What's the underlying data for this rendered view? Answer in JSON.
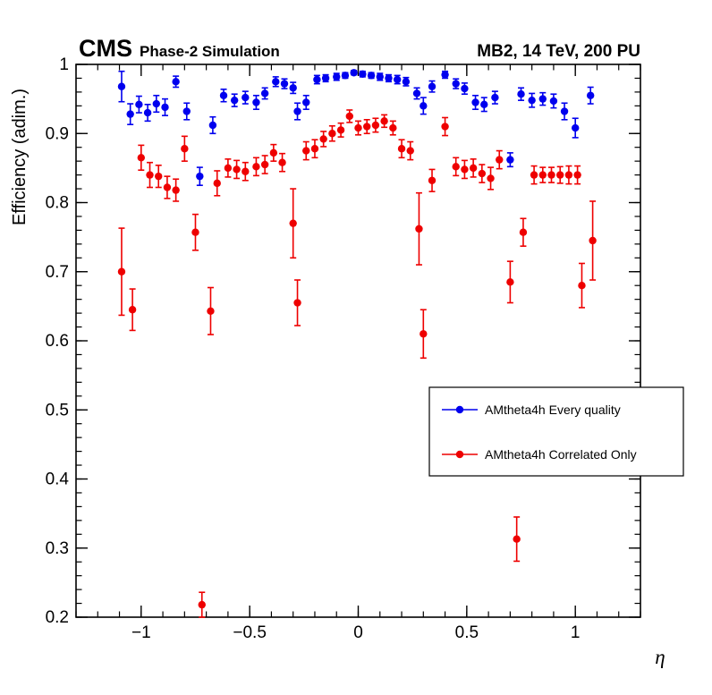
{
  "header": {
    "cms": "CMS",
    "subtitle": "Phase-2 Simulation",
    "right": "MB2, 14 TeV, 200 PU"
  },
  "axes": {
    "ylabel": "Efficiency (adim.)",
    "xlabel": "η"
  },
  "chart_data": {
    "type": "scatter",
    "title": "",
    "xlabel": "η",
    "ylabel": "Efficiency (adim.)",
    "xlim": [
      -1.3,
      1.3
    ],
    "ylim": [
      0.2,
      1.0
    ],
    "grid": false,
    "legend_position": "middle-right",
    "xticks": {
      "major": [
        -1,
        -0.5,
        0,
        0.5,
        1
      ],
      "labels": [
        "−1",
        "−0.5",
        "0",
        "0.5",
        "1"
      ],
      "minor_step": 0.1
    },
    "yticks": {
      "major": [
        0.2,
        0.3,
        0.4,
        0.5,
        0.6,
        0.7,
        0.8,
        0.9,
        1.0
      ],
      "labels": [
        "0.2",
        "0.3",
        "0.4",
        "0.5",
        "0.6",
        "0.7",
        "0.8",
        "0.9",
        "1"
      ],
      "minor_step": 0.02
    },
    "series": [
      {
        "name": "AMtheta4h Every quality",
        "color": "#0000ee",
        "marker": "circle",
        "points": [
          [
            -1.09,
            0.968,
            0.022
          ],
          [
            -1.05,
            0.928,
            0.015
          ],
          [
            -1.01,
            0.942,
            0.012
          ],
          [
            -0.97,
            0.93,
            0.012
          ],
          [
            -0.93,
            0.943,
            0.012
          ],
          [
            -0.89,
            0.938,
            0.012
          ],
          [
            -0.84,
            0.975,
            0.008
          ],
          [
            -0.79,
            0.932,
            0.012
          ],
          [
            -0.73,
            0.838,
            0.013
          ],
          [
            -0.67,
            0.912,
            0.012
          ],
          [
            -0.62,
            0.955,
            0.009
          ],
          [
            -0.57,
            0.948,
            0.009
          ],
          [
            -0.52,
            0.952,
            0.009
          ],
          [
            -0.47,
            0.945,
            0.01
          ],
          [
            -0.43,
            0.958,
            0.008
          ],
          [
            -0.38,
            0.975,
            0.007
          ],
          [
            -0.34,
            0.972,
            0.007
          ],
          [
            -0.3,
            0.966,
            0.008
          ],
          [
            -0.28,
            0.932,
            0.012
          ],
          [
            -0.24,
            0.945,
            0.01
          ],
          [
            -0.19,
            0.978,
            0.006
          ],
          [
            -0.15,
            0.98,
            0.005
          ],
          [
            -0.1,
            0.982,
            0.005
          ],
          [
            -0.06,
            0.984,
            0.004
          ],
          [
            -0.02,
            0.988,
            0.003
          ],
          [
            0.02,
            0.986,
            0.004
          ],
          [
            0.06,
            0.984,
            0.004
          ],
          [
            0.1,
            0.982,
            0.005
          ],
          [
            0.14,
            0.98,
            0.005
          ],
          [
            0.18,
            0.978,
            0.006
          ],
          [
            0.22,
            0.975,
            0.006
          ],
          [
            0.27,
            0.958,
            0.008
          ],
          [
            0.3,
            0.94,
            0.012
          ],
          [
            0.34,
            0.968,
            0.008
          ],
          [
            0.4,
            0.985,
            0.005
          ],
          [
            0.45,
            0.972,
            0.007
          ],
          [
            0.49,
            0.965,
            0.008
          ],
          [
            0.54,
            0.945,
            0.01
          ],
          [
            0.58,
            0.942,
            0.01
          ],
          [
            0.63,
            0.952,
            0.009
          ],
          [
            0.7,
            0.862,
            0.01
          ],
          [
            0.75,
            0.957,
            0.009
          ],
          [
            0.8,
            0.948,
            0.01
          ],
          [
            0.85,
            0.95,
            0.009
          ],
          [
            0.9,
            0.947,
            0.01
          ],
          [
            0.95,
            0.932,
            0.012
          ],
          [
            1.0,
            0.908,
            0.014
          ],
          [
            1.07,
            0.955,
            0.012
          ]
        ]
      },
      {
        "name": "AMtheta4h Correlated Only",
        "color": "#ee0000",
        "marker": "circle",
        "points": [
          [
            -1.09,
            0.7,
            0.063
          ],
          [
            -1.04,
            0.645,
            0.03
          ],
          [
            -1.0,
            0.865,
            0.018
          ],
          [
            -0.96,
            0.84,
            0.018
          ],
          [
            -0.92,
            0.838,
            0.016
          ],
          [
            -0.88,
            0.822,
            0.016
          ],
          [
            -0.84,
            0.818,
            0.016
          ],
          [
            -0.8,
            0.878,
            0.018
          ],
          [
            -0.75,
            0.757,
            0.026
          ],
          [
            -0.72,
            0.218,
            0.018
          ],
          [
            -0.68,
            0.643,
            0.034
          ],
          [
            -0.65,
            0.828,
            0.018
          ],
          [
            -0.6,
            0.85,
            0.013
          ],
          [
            -0.56,
            0.848,
            0.013
          ],
          [
            -0.52,
            0.845,
            0.013
          ],
          [
            -0.47,
            0.852,
            0.013
          ],
          [
            -0.43,
            0.855,
            0.013
          ],
          [
            -0.39,
            0.872,
            0.012
          ],
          [
            -0.35,
            0.858,
            0.013
          ],
          [
            -0.3,
            0.77,
            0.05
          ],
          [
            -0.28,
            0.655,
            0.033
          ],
          [
            -0.24,
            0.875,
            0.013
          ],
          [
            -0.2,
            0.878,
            0.013
          ],
          [
            -0.16,
            0.892,
            0.011
          ],
          [
            -0.12,
            0.9,
            0.011
          ],
          [
            -0.08,
            0.905,
            0.01
          ],
          [
            -0.04,
            0.925,
            0.009
          ],
          [
            0.0,
            0.908,
            0.01
          ],
          [
            0.04,
            0.91,
            0.01
          ],
          [
            0.08,
            0.912,
            0.01
          ],
          [
            0.12,
            0.918,
            0.009
          ],
          [
            0.16,
            0.908,
            0.01
          ],
          [
            0.2,
            0.878,
            0.013
          ],
          [
            0.24,
            0.875,
            0.013
          ],
          [
            0.28,
            0.762,
            0.052
          ],
          [
            0.3,
            0.61,
            0.035
          ],
          [
            0.34,
            0.832,
            0.016
          ],
          [
            0.4,
            0.91,
            0.013
          ],
          [
            0.45,
            0.852,
            0.013
          ],
          [
            0.49,
            0.848,
            0.013
          ],
          [
            0.53,
            0.85,
            0.013
          ],
          [
            0.57,
            0.842,
            0.013
          ],
          [
            0.61,
            0.835,
            0.016
          ],
          [
            0.65,
            0.862,
            0.013
          ],
          [
            0.7,
            0.685,
            0.03
          ],
          [
            0.73,
            0.313,
            0.032
          ],
          [
            0.76,
            0.757,
            0.02
          ],
          [
            0.81,
            0.84,
            0.013
          ],
          [
            0.85,
            0.84,
            0.011
          ],
          [
            0.89,
            0.84,
            0.011
          ],
          [
            0.93,
            0.84,
            0.012
          ],
          [
            0.97,
            0.84,
            0.013
          ],
          [
            1.01,
            0.84,
            0.013
          ],
          [
            1.03,
            0.68,
            0.032
          ],
          [
            1.08,
            0.745,
            0.057
          ]
        ]
      }
    ]
  }
}
